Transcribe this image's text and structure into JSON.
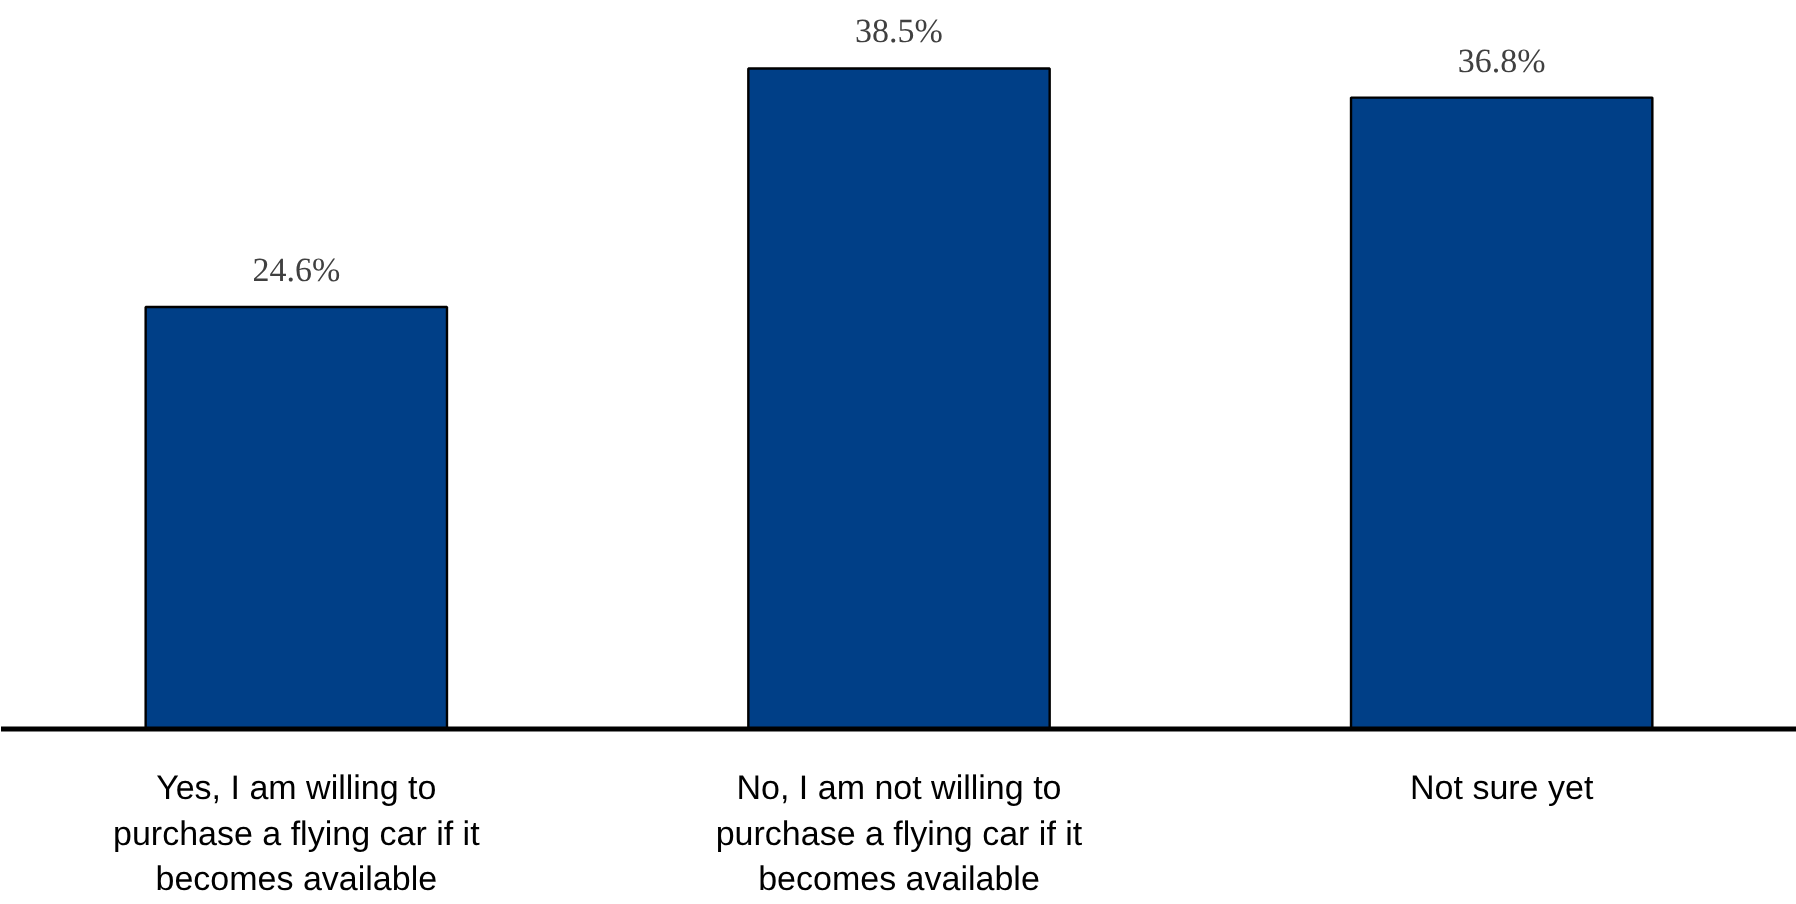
{
  "chart_data": {
    "type": "bar",
    "categories": [
      "Yes, I am willing to purchase a flying car if it becomes available",
      "No, I am not willing to purchase a flying car if it becomes available",
      "Not sure yet"
    ],
    "values": [
      24.6,
      38.5,
      36.8
    ],
    "color": "#003f87",
    "value_labels": [
      "24.6%",
      "38.5%",
      "36.8%"
    ]
  }
}
